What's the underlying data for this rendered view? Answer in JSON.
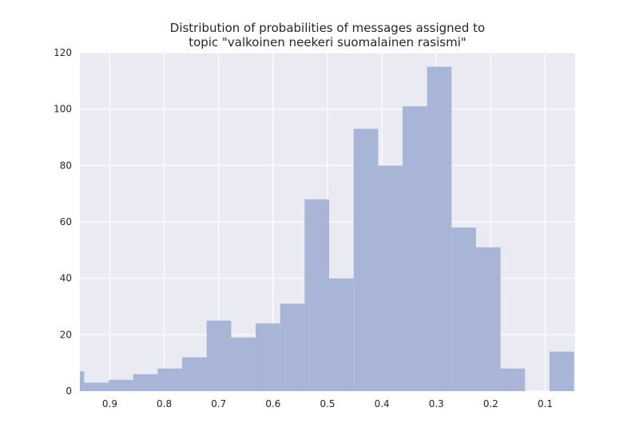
{
  "chart_data": {
    "type": "bar",
    "title_lines": [
      "Distribution of probabilities of messages assigned to",
      "topic \"valkoinen neekeri suomalainen rasismi\""
    ],
    "xlabel": "",
    "ylabel": "",
    "x_axis_reversed": true,
    "xlim": [
      0.955,
      0.045
    ],
    "ylim": [
      0,
      120
    ],
    "x_ticks": [
      0.9,
      0.8,
      0.7,
      0.6,
      0.5,
      0.4,
      0.3,
      0.2,
      0.1
    ],
    "x_tick_labels": [
      "0.9",
      "0.8",
      "0.7",
      "0.6",
      "0.5",
      "0.4",
      "0.3",
      "0.2",
      "0.1"
    ],
    "y_ticks": [
      0,
      20,
      40,
      60,
      80,
      100,
      120
    ],
    "y_tick_labels": [
      "0",
      "20",
      "40",
      "60",
      "80",
      "100",
      "120"
    ],
    "grid": true,
    "bar_color": "#a8b5d6",
    "background_color": "#eaeaf2",
    "bins": [
      {
        "x_start": 0.955,
        "x_end": 0.947,
        "count": 7
      },
      {
        "x_start": 0.947,
        "x_end": 0.902,
        "count": 3
      },
      {
        "x_start": 0.902,
        "x_end": 0.857,
        "count": 4
      },
      {
        "x_start": 0.857,
        "x_end": 0.812,
        "count": 6
      },
      {
        "x_start": 0.812,
        "x_end": 0.767,
        "count": 8
      },
      {
        "x_start": 0.767,
        "x_end": 0.722,
        "count": 12
      },
      {
        "x_start": 0.722,
        "x_end": 0.677,
        "count": 25
      },
      {
        "x_start": 0.677,
        "x_end": 0.632,
        "count": 19
      },
      {
        "x_start": 0.632,
        "x_end": 0.587,
        "count": 24
      },
      {
        "x_start": 0.587,
        "x_end": 0.542,
        "count": 31
      },
      {
        "x_start": 0.542,
        "x_end": 0.497,
        "count": 68
      },
      {
        "x_start": 0.497,
        "x_end": 0.452,
        "count": 40
      },
      {
        "x_start": 0.452,
        "x_end": 0.407,
        "count": 93
      },
      {
        "x_start": 0.407,
        "x_end": 0.362,
        "count": 80
      },
      {
        "x_start": 0.362,
        "x_end": 0.317,
        "count": 101
      },
      {
        "x_start": 0.317,
        "x_end": 0.272,
        "count": 115
      },
      {
        "x_start": 0.272,
        "x_end": 0.227,
        "count": 58
      },
      {
        "x_start": 0.227,
        "x_end": 0.182,
        "count": 51
      },
      {
        "x_start": 0.182,
        "x_end": 0.137,
        "count": 8
      },
      {
        "x_start": 0.137,
        "x_end": 0.092,
        "count": 0
      },
      {
        "x_start": 0.092,
        "x_end": 0.047,
        "count": 14
      }
    ]
  }
}
